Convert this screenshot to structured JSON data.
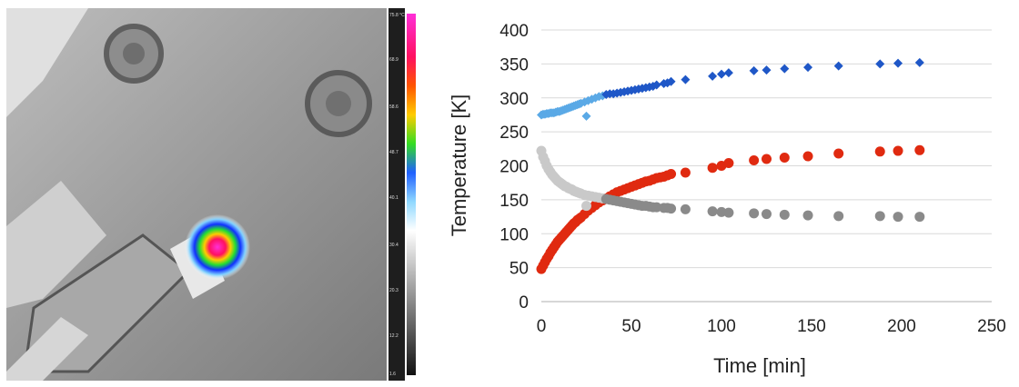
{
  "thermal_image": {
    "description_icon": "thermal-camera-image",
    "colorbar_ticks": [
      "75.8 °C",
      "68.9",
      "58.6",
      "48.7",
      "40.1",
      "30.4",
      "20.3",
      "12.2",
      "1.6"
    ]
  },
  "chart_data": {
    "type": "scatter",
    "title": "",
    "xlabel": "Time [min]",
    "ylabel": "Temperature [K]",
    "xlim": [
      0,
      250
    ],
    "ylim": [
      0,
      400
    ],
    "xticks": [
      0,
      50,
      100,
      150,
      200,
      250
    ],
    "yticks": [
      0,
      50,
      100,
      150,
      200,
      250,
      300,
      350,
      400
    ],
    "grid": "horizontal",
    "legend": "none",
    "series": [
      {
        "marker": "diamond",
        "color_early": "#5aa9e6",
        "color": "#1f57c7",
        "x": [
          0,
          1,
          2,
          3,
          4,
          5,
          6,
          7,
          8,
          9,
          10,
          11,
          12,
          13,
          14,
          15,
          16,
          17,
          18,
          19,
          20,
          21,
          22,
          24,
          25,
          26,
          28,
          30,
          32,
          34,
          36,
          38,
          40,
          42,
          44,
          46,
          48,
          50,
          52,
          54,
          56,
          58,
          60,
          62,
          64,
          68,
          70,
          72,
          80,
          95,
          100,
          104,
          118,
          125,
          135,
          148,
          165,
          188,
          198,
          210
        ],
        "y": [
          275,
          276,
          276,
          277,
          277,
          278,
          278,
          278,
          279,
          280,
          280,
          281,
          282,
          283,
          284,
          285,
          286,
          287,
          288,
          289,
          290,
          291,
          292,
          294,
          273,
          296,
          298,
          300,
          302,
          303,
          305,
          306,
          306,
          307,
          308,
          309,
          310,
          311,
          312,
          313,
          314,
          315,
          316,
          317,
          319,
          321,
          322,
          324,
          327,
          332,
          335,
          337,
          340,
          341,
          343,
          345,
          347,
          350,
          351,
          352
        ],
        "anomaly_index": 24
      },
      {
        "marker": "circle",
        "color": "#e02a10",
        "x": [
          0,
          1,
          2,
          3,
          4,
          5,
          6,
          7,
          8,
          9,
          10,
          11,
          12,
          13,
          14,
          15,
          16,
          17,
          18,
          19,
          20,
          21,
          22,
          24,
          26,
          28,
          30,
          32,
          34,
          36,
          38,
          40,
          42,
          44,
          46,
          48,
          50,
          52,
          54,
          56,
          58,
          60,
          62,
          64,
          66,
          68,
          70,
          72,
          80,
          95,
          100,
          104,
          118,
          125,
          135,
          148,
          165,
          188,
          198,
          210
        ],
        "y": [
          48,
          53,
          58,
          63,
          67,
          72,
          76,
          80,
          84,
          88,
          91,
          94,
          97,
          100,
          103,
          106,
          109,
          112,
          115,
          117,
          120,
          122,
          124,
          129,
          134,
          138,
          142,
          146,
          149,
          152,
          155,
          158,
          161,
          163,
          165,
          167,
          169,
          171,
          173,
          175,
          177,
          178,
          180,
          182,
          183,
          184,
          186,
          188,
          190,
          197,
          200,
          204,
          208,
          210,
          212,
          214,
          218,
          221,
          222,
          223
        ]
      },
      {
        "marker": "circle",
        "color_early": "#c9c9c9",
        "color": "#8a8a8a",
        "x": [
          0,
          1,
          2,
          3,
          4,
          5,
          6,
          7,
          8,
          9,
          10,
          11,
          12,
          13,
          14,
          15,
          16,
          17,
          18,
          19,
          20,
          21,
          22,
          24,
          25,
          26,
          28,
          30,
          32,
          34,
          36,
          38,
          40,
          42,
          44,
          46,
          48,
          50,
          52,
          54,
          56,
          58,
          60,
          62,
          64,
          68,
          70,
          72,
          80,
          95,
          100,
          104,
          118,
          125,
          135,
          148,
          165,
          188,
          198,
          210
        ],
        "y": [
          222,
          213,
          207,
          200,
          195,
          191,
          187,
          184,
          181,
          178,
          176,
          174,
          172,
          170,
          169,
          167,
          166,
          165,
          163,
          162,
          161,
          160,
          159,
          157,
          141,
          156,
          155,
          154,
          153,
          152,
          151,
          150,
          149,
          148,
          147,
          146,
          145,
          144,
          143,
          142,
          141,
          141,
          140,
          139,
          139,
          138,
          138,
          137,
          136,
          133,
          132,
          131,
          130,
          129,
          128,
          127,
          126,
          126,
          125,
          125
        ],
        "anomaly_index": 24
      }
    ]
  }
}
